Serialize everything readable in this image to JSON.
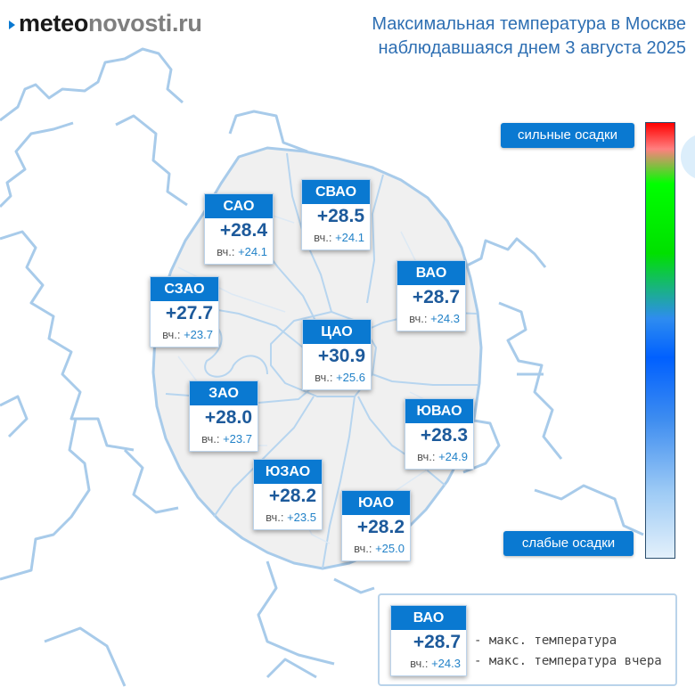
{
  "header": {
    "logo_part1": "meteo",
    "logo_part2": "novosti",
    "logo_part3": ".ru",
    "title_line1": "Максимальная температура в Москве",
    "title_line2": "наблюдавшаяся днем 3 августа 2025"
  },
  "colors": {
    "accent": "#0a79d1",
    "title": "#2e6fb3",
    "temp": "#1d5a9b",
    "yesterday": "#2282c8",
    "map_line": "#a8cbea",
    "map_fill": "#f0f0f0"
  },
  "districts": [
    {
      "name": "САО",
      "temp": "+28.4",
      "yest_label": "вч.:",
      "yest": "+24.1"
    },
    {
      "name": "СВАО",
      "temp": "+28.5",
      "yest_label": "вч.:",
      "yest": "+24.1"
    },
    {
      "name": "ВАО",
      "temp": "+28.7",
      "yest_label": "вч.:",
      "yest": "+24.3"
    },
    {
      "name": "СЗАО",
      "temp": "+27.7",
      "yest_label": "вч.:",
      "yest": "+23.7"
    },
    {
      "name": "ЦАО",
      "temp": "+30.9",
      "yest_label": "вч.:",
      "yest": "+25.6"
    },
    {
      "name": "ЗАО",
      "temp": "+28.0",
      "yest_label": "вч.:",
      "yest": "+23.7"
    },
    {
      "name": "ЮВАО",
      "temp": "+28.3",
      "yest_label": "вч.:",
      "yest": "+24.9"
    },
    {
      "name": "ЮЗАО",
      "temp": "+28.2",
      "yest_label": "вч.:",
      "yest": "+23.5"
    },
    {
      "name": "ЮАО",
      "temp": "+28.2",
      "yest_label": "вч.:",
      "yest": "+25.0"
    }
  ],
  "scale": {
    "top_label": "сильные осадки",
    "bottom_label": "слабые осадки"
  },
  "legend": {
    "name": "ВАО",
    "temp": "+28.7",
    "yest_label": "вч.:",
    "yest": "+24.3",
    "desc_max": "- макс. температура",
    "desc_yest": "- макс. температура вчера"
  }
}
